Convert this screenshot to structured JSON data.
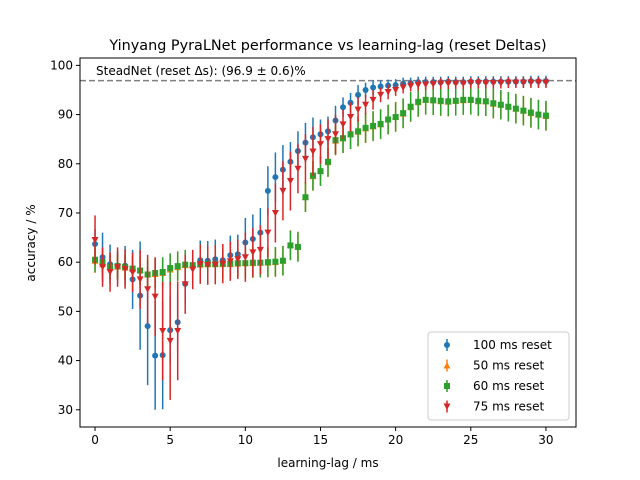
{
  "chart_data": {
    "type": "scatter",
    "title": "Yinyang PyraLNet performance vs learning-lag (reset Deltas)",
    "xlabel": "learning-lag / ms",
    "ylabel": "accuracy / %",
    "xlim": [
      -1,
      32
    ],
    "ylim": [
      26.5,
      101.5
    ],
    "xticks": [
      0,
      5,
      10,
      15,
      20,
      25,
      30
    ],
    "yticks": [
      30,
      40,
      50,
      60,
      70,
      80,
      90,
      100
    ],
    "grid": false,
    "legend_position": "lower right",
    "reference_line": {
      "y": 96.9,
      "label": "SteadNet (reset Δs): (96.9 ± 0.6)%",
      "color": "#808080",
      "style": "dashed"
    },
    "series": [
      {
        "name": "100 ms reset",
        "color": "#1f77b4",
        "marker": "circle",
        "x": [
          0,
          0.5,
          1,
          1.5,
          2,
          2.5,
          3,
          3.5,
          4,
          4.5,
          5,
          5.5,
          6,
          6.5,
          7,
          7.5,
          8,
          8.5,
          9,
          9.5,
          10,
          10.5,
          11,
          11.5,
          12,
          12.5,
          13,
          13.5,
          14,
          14.5,
          15,
          15.5,
          16,
          16.5,
          17,
          17.5,
          18,
          18.5,
          19,
          19.5,
          20,
          20.5,
          21,
          21.5,
          22,
          22.5,
          23,
          23.5,
          24,
          24.5,
          25,
          25.5,
          26,
          26.5,
          27,
          27.5,
          28,
          28.5,
          29,
          29.5,
          30
        ],
        "y": [
          63.7,
          61.0,
          59.6,
          59.3,
          59.3,
          56.5,
          53.2,
          47.0,
          41.0,
          41.1,
          46.2,
          47.8,
          55.6,
          59.1,
          60.4,
          60.3,
          60.6,
          60.4,
          61.4,
          61.6,
          64.0,
          64.7,
          66.0,
          74.5,
          77.3,
          78.8,
          80.4,
          82.6,
          84.3,
          85.4,
          86.0,
          86.6,
          88.8,
          91.5,
          92.4,
          94.0,
          95.0,
          95.5,
          95.7,
          95.9,
          96.0,
          96.3,
          96.4,
          96.6,
          96.6,
          96.6,
          96.6,
          96.7,
          96.6,
          96.6,
          96.7,
          96.7,
          96.7,
          96.7,
          96.7,
          96.7,
          96.7,
          96.7,
          96.8,
          96.8,
          96.8
        ],
        "err": [
          3,
          5,
          4,
          3,
          4,
          6,
          11,
          12,
          11,
          11,
          7,
          6,
          4,
          3,
          4,
          4,
          4,
          3,
          4,
          4,
          5,
          5,
          5,
          5,
          5,
          5,
          4,
          4,
          4,
          4,
          3,
          3,
          3,
          2,
          2,
          2,
          1.5,
          1.5,
          1.2,
          1.2,
          1.2,
          1.2,
          1.1,
          1.1,
          1.1,
          1.1,
          1.1,
          1.1,
          1.1,
          1.1,
          1.1,
          1.1,
          1.1,
          1.1,
          1.1,
          1.1,
          1.1,
          1.1,
          1.1,
          1.1,
          1.1
        ]
      },
      {
        "name": "50 ms reset",
        "color": "#ff7f0e",
        "marker": "triangle-up",
        "x": [
          0,
          0.5,
          1,
          1.5,
          2,
          2.5,
          3,
          3.5,
          4,
          4.5,
          5,
          5.5,
          6,
          6.5,
          7,
          7.5,
          8,
          8.5,
          9,
          9.5,
          10,
          10.5,
          11,
          11.5,
          12,
          12.5,
          13,
          13.5,
          14,
          14.5,
          15,
          15.5,
          16,
          16.5,
          17,
          17.5,
          18,
          18.5,
          19,
          19.5,
          20,
          20.5,
          21,
          21.5,
          22,
          22.5,
          23,
          23.5,
          24,
          24.5,
          25,
          25.5,
          26,
          26.5,
          27,
          27.5,
          28,
          28.5,
          29,
          29.5,
          30
        ],
        "y": [
          60.3,
          59.6,
          59.0,
          59.1,
          58.9,
          58.7,
          58.4,
          57.5,
          57.6,
          57.8,
          58.5,
          59.0,
          59.4,
          59.4,
          59.5,
          59.6,
          59.6,
          59.6,
          59.6,
          59.7,
          59.8,
          59.8,
          59.9,
          59.9,
          60.0,
          60.3,
          63.5,
          63.2,
          73.3,
          77.5,
          78.6,
          80.3,
          84.7,
          85.2,
          86.0,
          86.5,
          87.2,
          87.6,
          88.0,
          89.0,
          89.6,
          90.2,
          91.5,
          92.5,
          93.0,
          92.9,
          92.7,
          92.6,
          92.8,
          92.9,
          93.0,
          92.7,
          92.7,
          92.2,
          92.0,
          91.6,
          91.2,
          90.8,
          90.3,
          90.0,
          89.7
        ],
        "err": [
          2.5,
          2.5,
          2.5,
          2.5,
          2.5,
          2.5,
          3,
          3,
          3,
          3,
          3,
          3,
          3,
          3,
          3,
          3,
          3,
          3,
          3,
          3,
          3,
          3,
          3,
          3,
          3,
          3,
          3,
          3,
          3,
          3,
          3,
          3,
          3,
          3,
          3,
          3,
          3,
          3,
          3,
          3,
          3,
          3,
          3,
          3,
          3,
          3,
          3,
          3,
          3,
          3,
          3,
          3,
          3,
          3,
          3,
          3,
          3,
          3,
          3,
          3,
          3
        ]
      },
      {
        "name": "60 ms reset",
        "color": "#2ca02c",
        "marker": "square",
        "x": [
          0,
          0.5,
          1,
          1.5,
          2,
          2.5,
          3,
          3.5,
          4,
          4.5,
          5,
          5.5,
          6,
          6.5,
          7,
          7.5,
          8,
          8.5,
          9,
          9.5,
          10,
          10.5,
          11,
          11.5,
          12,
          12.5,
          13,
          13.5,
          14,
          14.5,
          15,
          15.5,
          16,
          16.5,
          17,
          17.5,
          18,
          18.5,
          19,
          19.5,
          20,
          20.5,
          21,
          21.5,
          22,
          22.5,
          23,
          23.5,
          24,
          24.5,
          25,
          25.5,
          26,
          26.5,
          27,
          27.5,
          28,
          28.5,
          29,
          29.5,
          30
        ],
        "y": [
          60.5,
          60.0,
          59.0,
          59.2,
          59.0,
          58.7,
          58.3,
          57.5,
          57.8,
          58.0,
          58.8,
          59.2,
          59.5,
          59.4,
          59.6,
          59.6,
          59.6,
          59.7,
          59.7,
          59.8,
          59.8,
          59.9,
          59.9,
          60.0,
          60.1,
          60.3,
          63.4,
          63.1,
          73.2,
          77.6,
          78.5,
          80.4,
          84.8,
          85.2,
          86.0,
          86.6,
          87.3,
          87.7,
          88.1,
          89.0,
          89.5,
          90.3,
          91.6,
          92.6,
          93.0,
          92.9,
          92.8,
          92.7,
          92.8,
          93.0,
          93.0,
          92.8,
          92.7,
          92.3,
          92.0,
          91.6,
          91.2,
          90.8,
          90.4,
          90.0,
          89.8
        ],
        "err": [
          2.5,
          2.5,
          2.5,
          2.5,
          2.5,
          2.5,
          3,
          3,
          3,
          3,
          3,
          3,
          3,
          3,
          3,
          3,
          3,
          3,
          3,
          3,
          3,
          3,
          3,
          3,
          3,
          3,
          3,
          3,
          3,
          3,
          3,
          3,
          3,
          3,
          3,
          3,
          3,
          3,
          3,
          3,
          3,
          3,
          3,
          3,
          3,
          3,
          3,
          3,
          3,
          3,
          3,
          3,
          3,
          3,
          3,
          3,
          3,
          3,
          3,
          3,
          3
        ]
      },
      {
        "name": "75 ms reset",
        "color": "#d62728",
        "marker": "triangle-down",
        "x": [
          0,
          0.5,
          1,
          1.5,
          2,
          2.5,
          3,
          3.5,
          4,
          4.5,
          5,
          5.5,
          6,
          6.5,
          7,
          7.5,
          8,
          8.5,
          9,
          9.5,
          10,
          10.5,
          11,
          11.5,
          12,
          12.5,
          13,
          13.5,
          14,
          14.5,
          15,
          15.5,
          16,
          16.5,
          17,
          17.5,
          18,
          18.5,
          19,
          19.5,
          20,
          20.5,
          21,
          21.5,
          22,
          22.5,
          23,
          23.5,
          24,
          24.5,
          25,
          25.5,
          26,
          26.5,
          27,
          27.5,
          28,
          28.5,
          29,
          29.5,
          30
        ],
        "y": [
          64.5,
          59.0,
          58.0,
          59.0,
          58.6,
          57.9,
          56.5,
          54.5,
          53.0,
          46.0,
          44.0,
          46.0,
          55.5,
          58.5,
          59.6,
          59.4,
          59.5,
          59.7,
          60.2,
          60.6,
          61.0,
          62.0,
          62.5,
          66.0,
          70.0,
          74.5,
          76.5,
          79.0,
          81.0,
          82.5,
          84.0,
          85.0,
          86.0,
          88.0,
          89.5,
          91.0,
          92.0,
          93.0,
          94.0,
          94.6,
          95.0,
          95.5,
          95.8,
          96.0,
          96.1,
          96.2,
          96.3,
          96.3,
          96.3,
          96.3,
          96.4,
          96.4,
          96.4,
          96.4,
          96.4,
          96.5,
          96.5,
          96.5,
          96.5,
          96.5,
          96.5
        ],
        "err": [
          5,
          4,
          4,
          4,
          4,
          4,
          6,
          7,
          8,
          10,
          12,
          10,
          6,
          4,
          4,
          4,
          4,
          4,
          4,
          4,
          5,
          5,
          5,
          5,
          6,
          6,
          6,
          5,
          5,
          5,
          4,
          4,
          4,
          3,
          3,
          2.5,
          2,
          2,
          1.5,
          1.5,
          1.2,
          1.2,
          1.1,
          1.1,
          1.1,
          1.1,
          1.1,
          1.1,
          1.1,
          1.1,
          1.1,
          1.1,
          1.1,
          1.1,
          1.1,
          1.1,
          1.1,
          1.1,
          1.1,
          1.1,
          1.1
        ]
      }
    ]
  }
}
